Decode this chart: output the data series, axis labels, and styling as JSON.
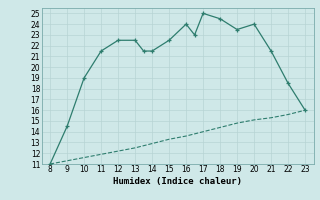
{
  "xlabel": "Humidex (Indice chaleur)",
  "background_color": "#cfe8e8",
  "grid_color_major": "#b0cccc",
  "grid_color_minor": "#d8eaea",
  "line_color": "#2e7d6e",
  "line1_x": [
    8,
    9,
    10,
    11,
    12,
    13,
    13.5,
    14,
    15,
    16,
    16.5,
    17,
    18,
    19,
    20,
    21,
    22,
    23
  ],
  "line1_y": [
    11,
    14.5,
    19,
    21.5,
    22.5,
    22.5,
    21.5,
    21.5,
    22.5,
    24,
    23,
    25,
    24.5,
    23.5,
    24,
    21.5,
    18.5,
    16
  ],
  "line2_x": [
    8,
    9,
    10,
    11,
    12,
    13,
    14,
    15,
    16,
    17,
    18,
    19,
    20,
    21,
    22,
    23
  ],
  "line2_y": [
    11,
    11.3,
    11.6,
    11.9,
    12.2,
    12.5,
    12.9,
    13.3,
    13.6,
    14.0,
    14.4,
    14.8,
    15.1,
    15.3,
    15.6,
    16
  ],
  "xlim": [
    7.5,
    23.5
  ],
  "ylim": [
    11,
    25.5
  ],
  "xticks": [
    8,
    9,
    10,
    11,
    12,
    13,
    14,
    15,
    16,
    17,
    18,
    19,
    20,
    21,
    22,
    23
  ],
  "yticks": [
    11,
    12,
    13,
    14,
    15,
    16,
    17,
    18,
    19,
    20,
    21,
    22,
    23,
    24,
    25
  ]
}
